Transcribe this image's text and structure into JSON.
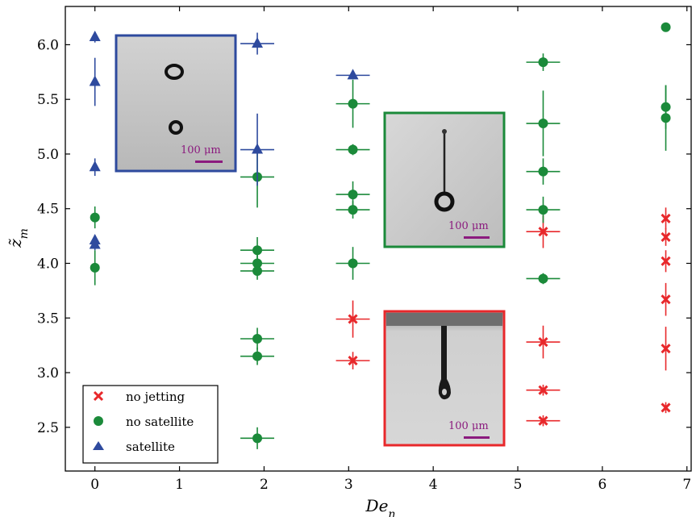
{
  "chart_data": {
    "type": "scatter",
    "xlabel": "De",
    "xlabel_sub": "n",
    "ylabel": "z̃",
    "ylabel_sub": "m",
    "xlim": [
      -0.35,
      7.05
    ],
    "ylim": [
      2.1,
      6.35
    ],
    "xticks": [
      0,
      1,
      2,
      3,
      4,
      5,
      6,
      7
    ],
    "yticks": [
      2.5,
      3.0,
      3.5,
      4.0,
      4.5,
      5.0,
      5.5,
      6.0
    ],
    "ytick_labels": [
      "2.5",
      "3.0",
      "3.5",
      "4.0",
      "4.5",
      "5.0",
      "5.5",
      "6.0"
    ],
    "legend_position": "bottom-left",
    "series": [
      {
        "name": "no jetting",
        "marker": "x",
        "color": "#e8282b",
        "points": [
          {
            "x": 3.05,
            "y": 3.49,
            "xerr": 0.2,
            "yerr": 0.17
          },
          {
            "x": 3.05,
            "y": 3.11,
            "xerr": 0.2,
            "yerr": 0.08
          },
          {
            "x": 5.3,
            "y": 4.29,
            "xerr": 0.2,
            "yerr": 0.15
          },
          {
            "x": 5.3,
            "y": 3.28,
            "xerr": 0.2,
            "yerr": 0.15
          },
          {
            "x": 5.3,
            "y": 2.84,
            "xerr": 0.2,
            "yerr": 0.05
          },
          {
            "x": 5.3,
            "y": 2.56,
            "xerr": 0.2,
            "yerr": 0.05
          },
          {
            "x": 6.75,
            "y": 4.41,
            "xerr": 0.0,
            "yerr": 0.1
          },
          {
            "x": 6.75,
            "y": 4.24,
            "xerr": 0.0,
            "yerr": 0.08
          },
          {
            "x": 6.75,
            "y": 4.02,
            "xerr": 0.0,
            "yerr": 0.1
          },
          {
            "x": 6.75,
            "y": 3.67,
            "xerr": 0.0,
            "yerr": 0.15
          },
          {
            "x": 6.75,
            "y": 3.22,
            "xerr": 0.0,
            "yerr": 0.2
          },
          {
            "x": 6.75,
            "y": 2.68,
            "xerr": 0.0,
            "yerr": 0.05
          }
        ]
      },
      {
        "name": "no satellite",
        "marker": "circle",
        "color": "#1b8a3a",
        "points": [
          {
            "x": 0.0,
            "y": 4.42,
            "xerr": 0.0,
            "yerr": 0.1
          },
          {
            "x": 0.0,
            "y": 3.96,
            "xerr": 0.0,
            "yerr": 0.16
          },
          {
            "x": 1.92,
            "y": 4.79,
            "xerr": 0.2,
            "yerr": 0.28
          },
          {
            "x": 1.92,
            "y": 4.12,
            "xerr": 0.2,
            "yerr": 0.12
          },
          {
            "x": 1.92,
            "y": 4.0,
            "xerr": 0.2,
            "yerr": 0.08
          },
          {
            "x": 1.92,
            "y": 3.93,
            "xerr": 0.2,
            "yerr": 0.08
          },
          {
            "x": 1.92,
            "y": 3.31,
            "xerr": 0.2,
            "yerr": 0.1
          },
          {
            "x": 1.92,
            "y": 3.15,
            "xerr": 0.2,
            "yerr": 0.08
          },
          {
            "x": 1.92,
            "y": 2.4,
            "xerr": 0.2,
            "yerr": 0.1
          },
          {
            "x": 3.05,
            "y": 5.46,
            "xerr": 0.2,
            "yerr": 0.22
          },
          {
            "x": 3.05,
            "y": 5.04,
            "xerr": 0.2,
            "yerr": 0.05
          },
          {
            "x": 3.05,
            "y": 4.63,
            "xerr": 0.2,
            "yerr": 0.12
          },
          {
            "x": 3.05,
            "y": 4.49,
            "xerr": 0.2,
            "yerr": 0.08
          },
          {
            "x": 3.05,
            "y": 4.0,
            "xerr": 0.2,
            "yerr": 0.15
          },
          {
            "x": 5.3,
            "y": 5.84,
            "xerr": 0.2,
            "yerr": 0.08
          },
          {
            "x": 5.3,
            "y": 5.28,
            "xerr": 0.2,
            "yerr": 0.3
          },
          {
            "x": 5.3,
            "y": 4.84,
            "xerr": 0.2,
            "yerr": 0.12
          },
          {
            "x": 5.3,
            "y": 4.49,
            "xerr": 0.2,
            "yerr": 0.12
          },
          {
            "x": 5.3,
            "y": 3.86,
            "xerr": 0.2,
            "yerr": 0.05
          },
          {
            "x": 6.75,
            "y": 6.16,
            "xerr": 0.0,
            "yerr": 0.0
          },
          {
            "x": 6.75,
            "y": 5.43,
            "xerr": 0.0,
            "yerr": 0.2
          },
          {
            "x": 6.75,
            "y": 5.33,
            "xerr": 0.0,
            "yerr": 0.3
          }
        ]
      },
      {
        "name": "satellite",
        "marker": "triangle",
        "color": "#2e4a9e",
        "points": [
          {
            "x": 0.0,
            "y": 6.07,
            "xerr": 0.0,
            "yerr": 0.05
          },
          {
            "x": 0.0,
            "y": 5.66,
            "xerr": 0.0,
            "yerr": 0.22
          },
          {
            "x": 0.0,
            "y": 4.88,
            "xerr": 0.0,
            "yerr": 0.08
          },
          {
            "x": 0.0,
            "y": 4.21,
            "xerr": 0.0,
            "yerr": 0.05
          },
          {
            "x": 0.0,
            "y": 4.17,
            "xerr": 0.0,
            "yerr": 0.05
          },
          {
            "x": 1.92,
            "y": 6.01,
            "xerr": 0.2,
            "yerr": 0.1
          },
          {
            "x": 1.92,
            "y": 5.04,
            "xerr": 0.2,
            "yerr": 0.33
          },
          {
            "x": 3.05,
            "y": 5.72,
            "xerr": 0.2,
            "yerr": 0.0
          }
        ]
      }
    ],
    "insets": [
      {
        "name": "satellite-inset",
        "frame_color": "#2e4a9e",
        "scale_bar_label": "100 μm",
        "scale_bar_color": "#8b1a7e"
      },
      {
        "name": "no-satellite-inset",
        "frame_color": "#1b8a3a",
        "scale_bar_label": "100 μm",
        "scale_bar_color": "#8b1a7e"
      },
      {
        "name": "no-jetting-inset",
        "frame_color": "#e8282b",
        "scale_bar_label": "100 μm",
        "scale_bar_color": "#8b1a7e"
      }
    ]
  }
}
